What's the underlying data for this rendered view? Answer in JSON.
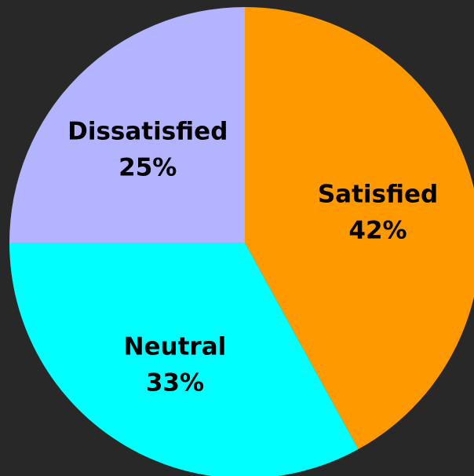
{
  "chart_data": {
    "type": "pie",
    "title": "",
    "slices": [
      {
        "label": "Satisfied",
        "value": 42,
        "display": "42%",
        "color": "#FF9900"
      },
      {
        "label": "Neutral",
        "value": 33,
        "display": "33%",
        "color": "#00FFFF"
      },
      {
        "label": "Dissatisfied",
        "value": 25,
        "display": "25%",
        "color": "#B3B3FF"
      }
    ],
    "start_angle": "12 o'clock",
    "direction": "clockwise",
    "background_color": "#282828"
  }
}
